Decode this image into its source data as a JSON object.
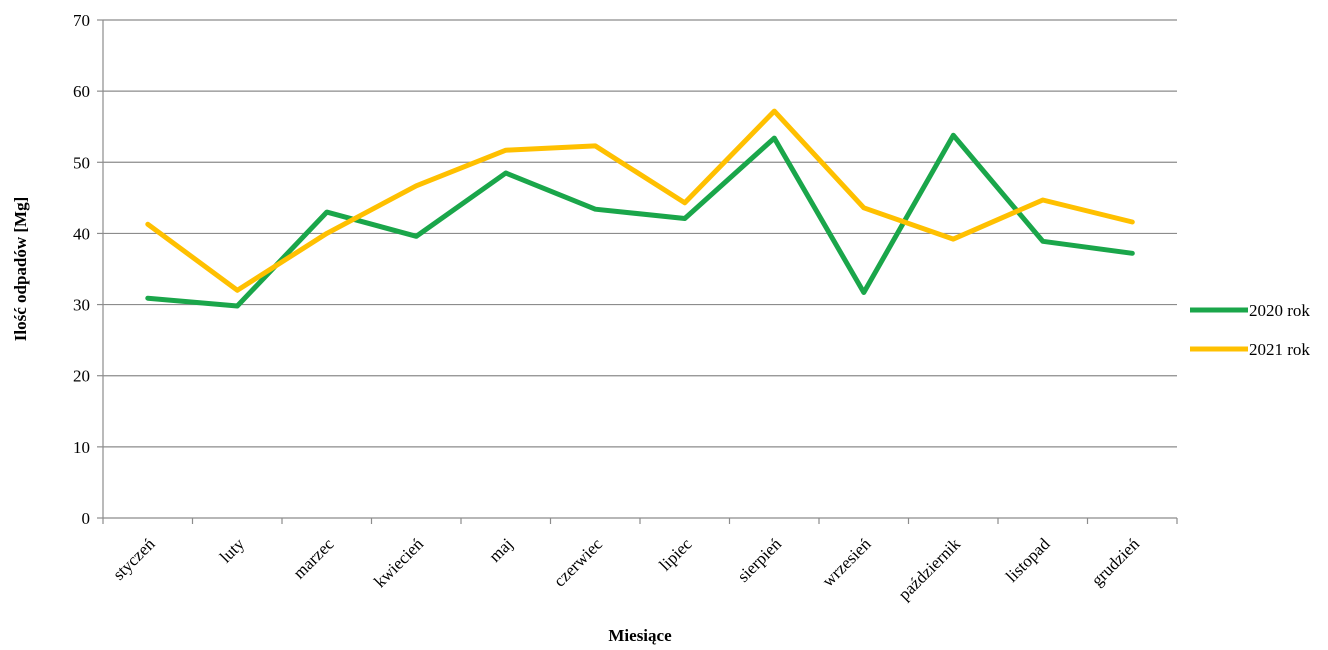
{
  "chart_data": {
    "type": "line",
    "title": "",
    "xlabel": "Miesiące",
    "ylabel": "Ilość odpadów [Mg]",
    "ylim": [
      0,
      70
    ],
    "yticks": [
      0,
      10,
      20,
      30,
      40,
      50,
      60,
      70
    ],
    "grid": "horizontal",
    "legend_position": "right",
    "categories": [
      "styczeń",
      "luty",
      "marzec",
      "kwiecień",
      "maj",
      "czerwiec",
      "lipiec",
      "sierpień",
      "wrzesień",
      "październik",
      "listopad",
      "grudzień"
    ],
    "series": [
      {
        "name": "2020 rok",
        "color": "#1aa64a",
        "values": [
          30.9,
          29.8,
          43.0,
          39.6,
          48.5,
          43.4,
          42.1,
          53.4,
          31.7,
          53.8,
          38.9,
          37.2
        ]
      },
      {
        "name": "2021 rok",
        "color": "#ffc000",
        "values": [
          41.3,
          32.0,
          40.0,
          46.7,
          51.7,
          52.3,
          44.3,
          57.2,
          43.6,
          39.2,
          44.7,
          41.6
        ]
      }
    ]
  }
}
